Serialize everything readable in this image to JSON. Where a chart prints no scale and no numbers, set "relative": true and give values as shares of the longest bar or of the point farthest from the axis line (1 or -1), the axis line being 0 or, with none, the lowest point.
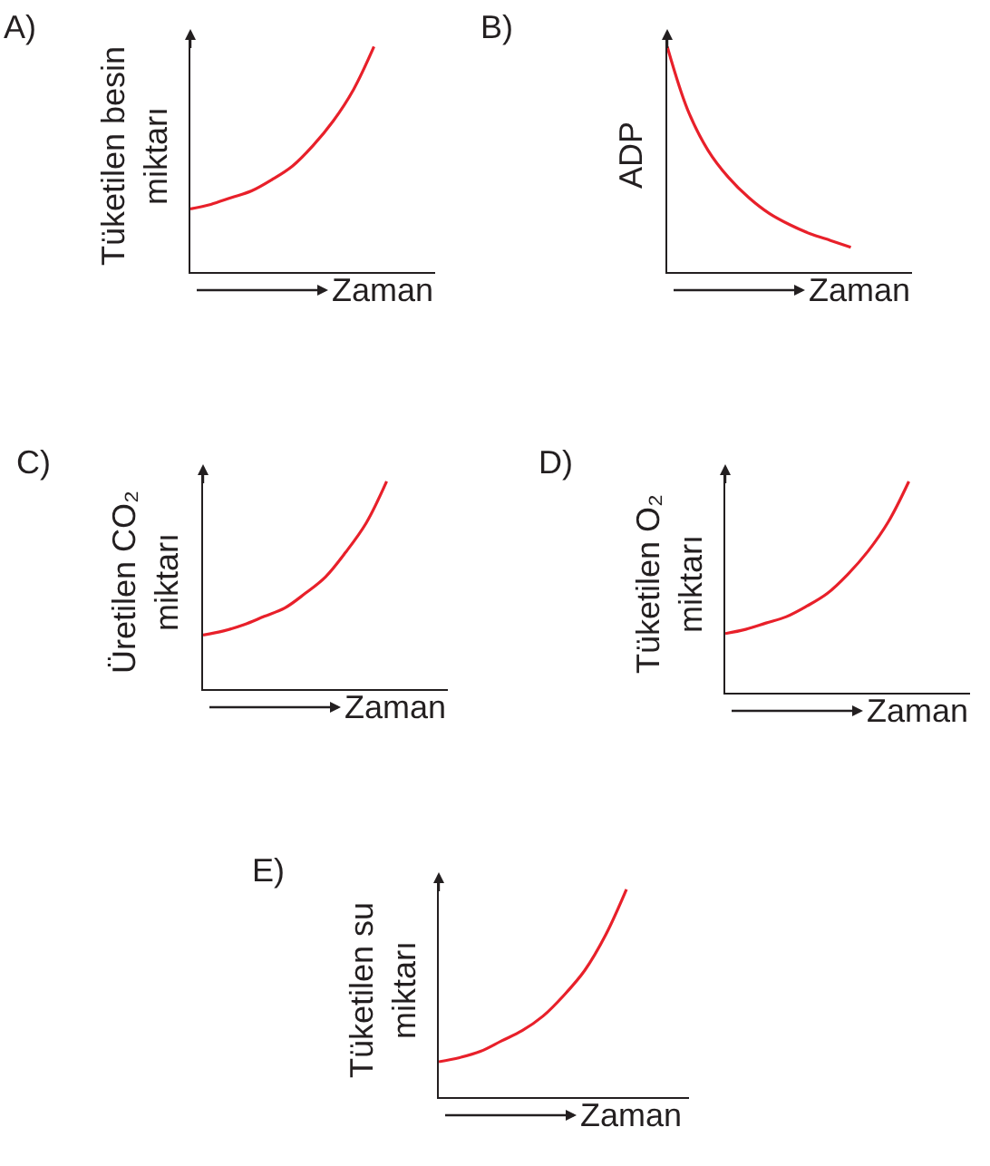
{
  "chart_data": [
    {
      "type": "line",
      "title": "A)",
      "xlabel": "Zaman",
      "ylabel": "Tüketilen besin miktarı",
      "relative": true,
      "categories": [
        null,
        null,
        null,
        null,
        null,
        null,
        null,
        null,
        null,
        null,
        null,
        null,
        null
      ],
      "series": [
        {
          "color": "#e8202a",
          "values": [
            0.28,
            0.3,
            0.33,
            0.36,
            0.41,
            0.47,
            0.56,
            0.67,
            0.81,
            1,
            null,
            null,
            null
          ]
        }
      ]
    },
    {
      "type": "line",
      "title": "B)",
      "xlabel": "Zaman",
      "ylabel": "ADP",
      "relative": true,
      "categories": [
        null,
        null,
        null,
        null,
        null,
        null,
        null,
        null,
        null,
        null,
        null,
        null,
        null
      ],
      "series": [
        {
          "color": "#e8202a",
          "values": [
            1,
            0.72,
            0.54,
            0.42,
            0.33,
            0.26,
            0.21,
            0.17,
            0.14,
            0.11,
            null,
            null,
            null
          ]
        }
      ]
    },
    {
      "type": "line",
      "title": "C)",
      "xlabel": "Zaman",
      "ylabel": "Üretilen CO₂ miktarı",
      "relative": true,
      "categories": [
        null,
        null,
        null,
        null,
        null,
        null,
        null,
        null,
        null,
        null,
        null,
        null,
        null
      ],
      "series": [
        {
          "color": "#e8202a",
          "values": [
            0.26,
            0.28,
            0.31,
            0.35,
            0.39,
            0.46,
            0.54,
            0.66,
            0.8,
            1,
            null,
            null,
            null
          ]
        }
      ]
    },
    {
      "type": "line",
      "title": "D)",
      "xlabel": "Zaman",
      "ylabel": "Tüketilen O₂ miktarı",
      "relative": true,
      "categories": [
        null,
        null,
        null,
        null,
        null,
        null,
        null,
        null,
        null,
        null,
        null,
        null,
        null
      ],
      "series": [
        {
          "color": "#e8202a",
          "values": [
            0.28,
            0.3,
            0.33,
            0.36,
            0.41,
            0.47,
            0.56,
            0.67,
            0.81,
            1,
            null,
            null,
            null
          ]
        }
      ]
    },
    {
      "type": "line",
      "title": "E)",
      "xlabel": "Zaman",
      "ylabel": "Tüketilen su miktarı",
      "relative": true,
      "categories": [
        null,
        null,
        null,
        null,
        null,
        null,
        null,
        null,
        null,
        null,
        null,
        null,
        null
      ],
      "series": [
        {
          "color": "#e8202a",
          "values": [
            0.17,
            0.19,
            0.22,
            0.27,
            0.32,
            0.39,
            0.49,
            0.61,
            0.78,
            1,
            null,
            null,
            null
          ]
        }
      ]
    }
  ]
}
